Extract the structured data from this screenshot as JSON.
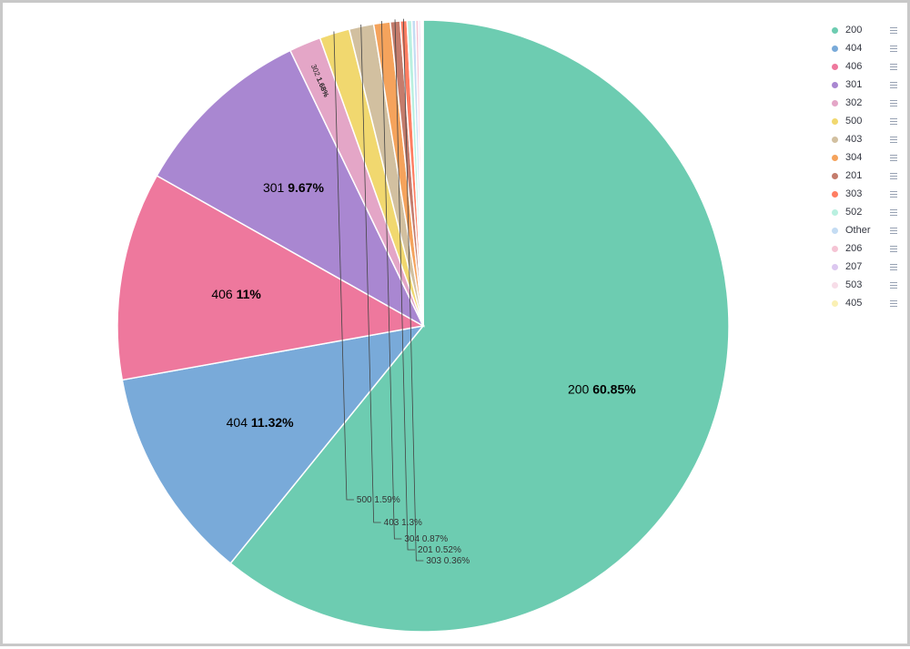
{
  "chart_data": {
    "type": "pie",
    "slices": [
      {
        "label": "200",
        "value": 60.85,
        "display": "60.85%",
        "color": "#6dccb1"
      },
      {
        "label": "404",
        "value": 11.32,
        "display": "11.32%",
        "color": "#79aad9"
      },
      {
        "label": "406",
        "value": 11.0,
        "display": "11%",
        "color": "#ee789d"
      },
      {
        "label": "301",
        "value": 9.67,
        "display": "9.67%",
        "color": "#a987d1"
      },
      {
        "label": "302",
        "value": 1.68,
        "display": "1.68%",
        "color": "#e4a6c7"
      },
      {
        "label": "500",
        "value": 1.59,
        "display": "1.59%",
        "color": "#f1d86f"
      },
      {
        "label": "403",
        "value": 1.3,
        "display": "1.3%",
        "color": "#d2c0a0"
      },
      {
        "label": "304",
        "value": 0.87,
        "display": "0.87%",
        "color": "#f5a35c"
      },
      {
        "label": "201",
        "value": 0.52,
        "display": "0.52%",
        "color": "#c47c6c"
      },
      {
        "label": "303",
        "value": 0.36,
        "display": "0.36%",
        "color": "#ff7e62"
      },
      {
        "label": "502",
        "value": 0.25,
        "display": "",
        "color": "#b9f0e0"
      },
      {
        "label": "Other",
        "value": 0.2,
        "display": "",
        "color": "#c4dcf3"
      },
      {
        "label": "206",
        "value": 0.15,
        "display": "",
        "color": "#f5c4d4"
      },
      {
        "label": "207",
        "value": 0.1,
        "display": "",
        "color": "#dcc8f0"
      },
      {
        "label": "503",
        "value": 0.08,
        "display": "",
        "color": "#f7dde8"
      },
      {
        "label": "405",
        "value": 0.06,
        "display": "",
        "color": "#faf0b4"
      }
    ],
    "legend_position": "top-right"
  },
  "legend": {
    "items": [
      "200",
      "404",
      "406",
      "301",
      "302",
      "500",
      "403",
      "304",
      "201",
      "303",
      "502",
      "Other",
      "206",
      "207",
      "503",
      "405"
    ]
  }
}
